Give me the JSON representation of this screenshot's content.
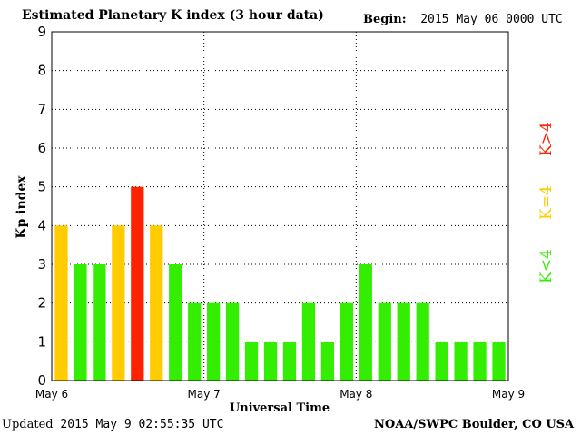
{
  "header": {
    "title": "Estimated Planetary K index (3 hour data)",
    "begin_label": "Begin:",
    "begin_value": "2015 May 06 0000 UTC"
  },
  "footer": {
    "updated_label": "Updated",
    "updated_value": "2015 May  9 02:55:35 UTC",
    "source": "NOAA/SWPC Boulder, CO USA"
  },
  "legend": {
    "low": {
      "label": "K<4",
      "color": "#33ee00"
    },
    "mid": {
      "label": "K=4",
      "color": "#ffcc00"
    },
    "high": {
      "label": "K>4",
      "color": "#ff2200"
    }
  },
  "chart_data": {
    "type": "bar",
    "xlabel": "Universal Time",
    "ylabel": "Kp index",
    "ylim": [
      0,
      9
    ],
    "yticks": [
      0,
      1,
      2,
      3,
      4,
      5,
      6,
      7,
      8,
      9
    ],
    "xticks": [
      "May 6",
      "May 7",
      "May 8",
      "May 9"
    ],
    "grid": true,
    "values": [
      4,
      3,
      3,
      4,
      5,
      4,
      3,
      2,
      2,
      2,
      1,
      1,
      1,
      2,
      1,
      2,
      3,
      2,
      2,
      2,
      1,
      1,
      1,
      1
    ]
  }
}
